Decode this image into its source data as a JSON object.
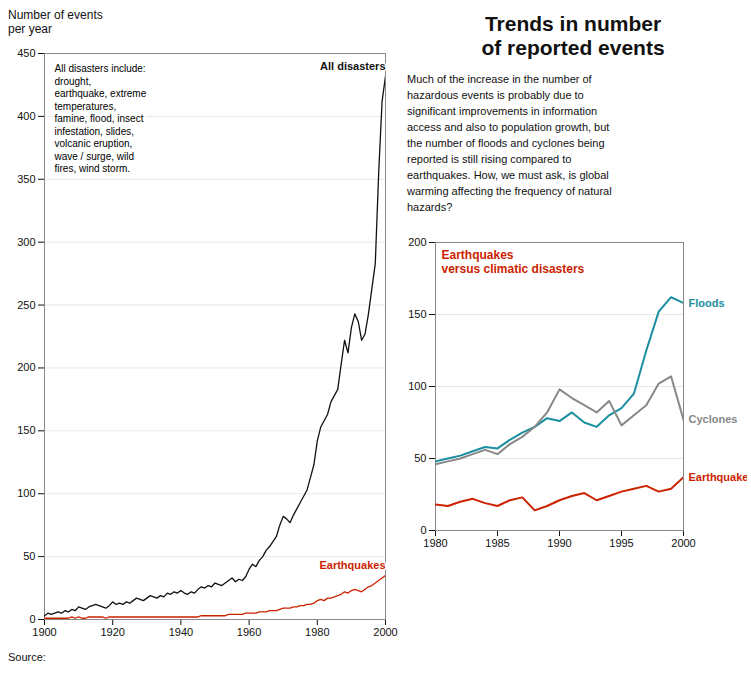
{
  "chart_data": [
    {
      "type": "line",
      "ylabel": "Number of events\nper year",
      "source": "Source:",
      "annotations": [
        "All disasters include:\ndrought,\nearthquake, extreme\ntemperatures,\nfamine, flood, insect\ninfestation, slides,\nvolcanic eruption,\nwave / surge, wild\nfires, wind storm."
      ],
      "x": [
        1900,
        1901,
        1902,
        1903,
        1904,
        1905,
        1906,
        1907,
        1908,
        1909,
        1910,
        1911,
        1912,
        1913,
        1914,
        1915,
        1916,
        1917,
        1918,
        1919,
        1920,
        1921,
        1922,
        1923,
        1924,
        1925,
        1926,
        1927,
        1928,
        1929,
        1930,
        1931,
        1932,
        1933,
        1934,
        1935,
        1936,
        1937,
        1938,
        1939,
        1940,
        1941,
        1942,
        1943,
        1944,
        1945,
        1946,
        1947,
        1948,
        1949,
        1950,
        1951,
        1952,
        1953,
        1954,
        1955,
        1956,
        1957,
        1958,
        1959,
        1960,
        1961,
        1962,
        1963,
        1964,
        1965,
        1966,
        1967,
        1968,
        1969,
        1970,
        1971,
        1972,
        1973,
        1974,
        1975,
        1976,
        1977,
        1978,
        1979,
        1980,
        1981,
        1982,
        1983,
        1984,
        1985,
        1986,
        1987,
        1988,
        1989,
        1990,
        1991,
        1992,
        1993,
        1994,
        1995,
        1996,
        1997,
        1998,
        1999,
        2000
      ],
      "series": [
        {
          "name": "All disasters",
          "color": "#111111",
          "values": [
            3,
            5,
            4,
            5,
            6,
            5,
            7,
            6,
            8,
            7,
            10,
            9,
            8,
            10,
            11,
            12,
            11,
            10,
            9,
            11,
            14,
            12,
            13,
            12,
            14,
            13,
            15,
            17,
            16,
            15,
            17,
            19,
            18,
            17,
            19,
            18,
            21,
            20,
            22,
            21,
            23,
            21,
            20,
            22,
            21,
            24,
            26,
            25,
            27,
            26,
            29,
            28,
            27,
            29,
            31,
            33,
            30,
            32,
            31,
            34,
            40,
            44,
            42,
            47,
            50,
            55,
            58,
            62,
            66,
            75,
            82,
            80,
            77,
            83,
            88,
            93,
            98,
            103,
            113,
            123,
            142,
            153,
            158,
            163,
            173,
            178,
            183,
            203,
            222,
            212,
            232,
            243,
            237,
            222,
            227,
            243,
            263,
            283,
            355,
            412,
            432
          ]
        },
        {
          "name": "Earthquakes",
          "color": "#cc2200",
          "values": [
            1,
            1,
            1,
            1,
            1,
            1,
            1,
            1,
            2,
            1,
            2,
            1,
            1,
            2,
            2,
            2,
            2,
            2,
            1,
            2,
            2,
            2,
            2,
            2,
            2,
            2,
            2,
            2,
            2,
            2,
            2,
            2,
            2,
            2,
            2,
            2,
            2,
            2,
            2,
            2,
            2,
            2,
            2,
            2,
            2,
            2,
            3,
            3,
            3,
            3,
            3,
            3,
            3,
            3,
            4,
            4,
            4,
            4,
            4,
            5,
            5,
            5,
            5,
            6,
            6,
            6,
            7,
            7,
            7,
            8,
            9,
            9,
            9,
            10,
            10,
            11,
            11,
            12,
            12,
            13,
            15,
            16,
            15,
            17,
            17,
            18,
            19,
            20,
            22,
            21,
            23,
            24,
            23,
            22,
            24,
            26,
            27,
            29,
            31,
            33,
            35
          ]
        }
      ],
      "xlim": [
        1900,
        2000
      ],
      "xticks": [
        1900,
        1920,
        1940,
        1960,
        1980,
        2000
      ],
      "ylim": [
        0,
        450
      ],
      "yticks": [
        0,
        50,
        100,
        150,
        200,
        250,
        300,
        350,
        400,
        450
      ],
      "grid": true
    },
    {
      "type": "line",
      "title": "Trends in number\nof reported events",
      "subtitle": "Much of the increase in the number of\nhazardous events is probably due to\nsignificant improvements in information\naccess and also to population growth, but\nthe number of floods and cyclones being\nreported is still rising compared to\nearthquakes. How, we must ask, is global\nwarming affecting the frequency of natural\nhazards?",
      "annotations": [
        "Earthquakes\nversus climatic disasters"
      ],
      "x": [
        1980,
        1981,
        1982,
        1983,
        1984,
        1985,
        1986,
        1987,
        1988,
        1989,
        1990,
        1991,
        1992,
        1993,
        1994,
        1995,
        1996,
        1997,
        1998,
        1999,
        2000
      ],
      "series": [
        {
          "name": "Floods",
          "color": "#1a8fa0",
          "values": [
            48,
            50,
            52,
            55,
            58,
            57,
            63,
            68,
            72,
            78,
            76,
            82,
            75,
            72,
            80,
            85,
            95,
            125,
            152,
            162,
            158
          ]
        },
        {
          "name": "Cyclones",
          "color": "#888888",
          "values": [
            46,
            48,
            50,
            53,
            56,
            53,
            60,
            65,
            72,
            82,
            98,
            92,
            87,
            82,
            90,
            73,
            80,
            87,
            102,
            107,
            77
          ]
        },
        {
          "name": "Earthquakes",
          "color": "#cc2200",
          "values": [
            18,
            17,
            20,
            22,
            19,
            17,
            21,
            23,
            14,
            17,
            21,
            24,
            26,
            21,
            24,
            27,
            29,
            31,
            27,
            29,
            37
          ]
        }
      ],
      "xlim": [
        1980,
        2000
      ],
      "xticks": [
        1980,
        1985,
        1990,
        1995,
        2000
      ],
      "ylim": [
        0,
        200
      ],
      "yticks": [
        0,
        50,
        100,
        150,
        200
      ],
      "grid": true
    }
  ]
}
